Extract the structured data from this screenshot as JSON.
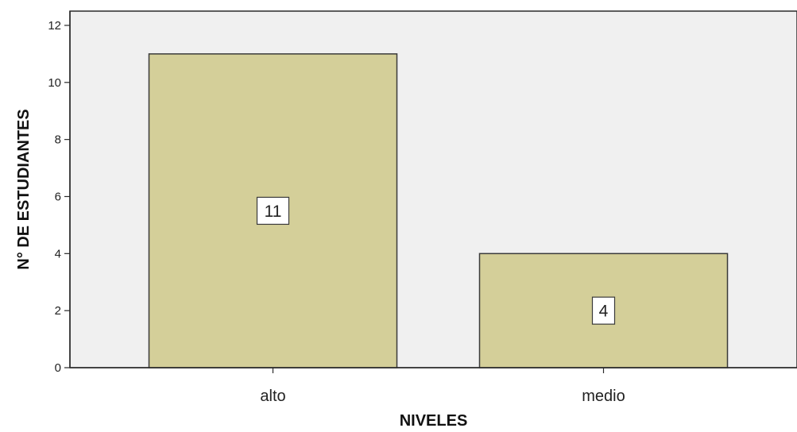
{
  "chart_data": {
    "type": "bar",
    "categories": [
      "alto",
      "medio"
    ],
    "values": [
      11,
      4
    ],
    "data_labels": [
      "11",
      "4"
    ],
    "xlabel": "NIVELES",
    "ylabel": "N° DE ESTUDIANTES",
    "ylim": [
      0,
      12.5
    ],
    "yticks": [
      0,
      2,
      4,
      6,
      8,
      10,
      12
    ],
    "ytick_labels": [
      "0",
      "2",
      "4",
      "6",
      "8",
      "10",
      "12"
    ],
    "grid": false,
    "legend": "none",
    "colors": {
      "bar_fill": "#d4cf99",
      "bar_stroke": "#3a3a3a",
      "plot_background": "#f0f0f0",
      "axis": "#2a2a2a"
    }
  }
}
